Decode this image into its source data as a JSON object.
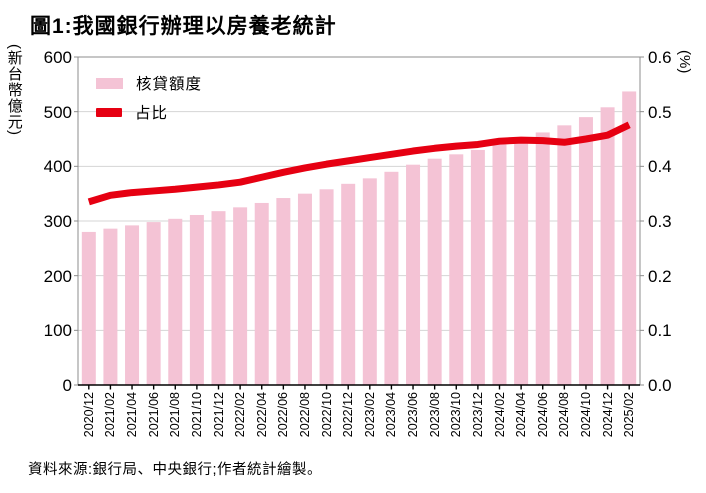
{
  "title": "圖1:我國銀行辦理以房養老統計",
  "source_note": "資料來源:銀行局、中央銀行;作者統計繪製。",
  "legend": {
    "bar_label": "核貸額度",
    "line_label": "占比"
  },
  "axes": {
    "left_unit": "(新台幣億元)",
    "right_unit": "(%)",
    "left_ticks": [
      0,
      100,
      200,
      300,
      400,
      500,
      600
    ],
    "right_ticks": [
      "0.0",
      "0.1",
      "0.2",
      "0.3",
      "0.4",
      "0.5",
      "0.6"
    ]
  },
  "colors": {
    "bar": "#F4C3D5",
    "line": "#E60012",
    "grid": "#D4D4D4",
    "plot_border": "#8C8C8C",
    "axis": "#000000",
    "text": "#000000"
  },
  "chart_data": {
    "type": "bar",
    "combo": "bar+line",
    "title": "圖1:我國銀行辦理以房養老統計",
    "categories": [
      "2020/12",
      "2021/02",
      "2021/04",
      "2021/06",
      "2021/08",
      "2021/10",
      "2021/12",
      "2022/02",
      "2022/04",
      "2022/06",
      "2022/08",
      "2022/10",
      "2022/12",
      "2023/02",
      "2023/04",
      "2023/06",
      "2023/08",
      "2023/10",
      "2023/12",
      "2024/02",
      "2024/04",
      "2024/06",
      "2024/08",
      "2024/10",
      "2024/12",
      "2025/02"
    ],
    "series": [
      {
        "name": "核貸額度",
        "type": "bar",
        "axis": "left",
        "unit": "新台幣億元",
        "values": [
          280,
          286,
          292,
          298,
          304,
          311,
          318,
          325,
          333,
          342,
          350,
          358,
          368,
          378,
          390,
          403,
          414,
          422,
          430,
          440,
          450,
          462,
          475,
          490,
          508,
          537
        ]
      },
      {
        "name": "占比",
        "type": "line",
        "axis": "right",
        "unit": "%",
        "values": [
          0.335,
          0.347,
          0.352,
          0.355,
          0.358,
          0.362,
          0.366,
          0.371,
          0.38,
          0.389,
          0.397,
          0.404,
          0.41,
          0.416,
          0.422,
          0.428,
          0.433,
          0.437,
          0.44,
          0.446,
          0.448,
          0.447,
          0.444,
          0.45,
          0.457,
          0.476
        ]
      }
    ],
    "left_ylim": [
      0,
      600
    ],
    "right_ylim": [
      0.0,
      0.6
    ],
    "left_ylabel": "新台幣億元",
    "right_ylabel": "%",
    "grid": true,
    "legend_position": "inside-top-left"
  }
}
